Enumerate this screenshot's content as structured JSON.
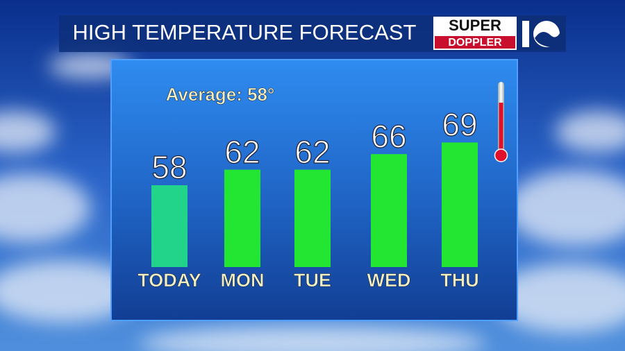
{
  "chart_data": {
    "type": "bar",
    "title": "HIGH TEMPERATURE FORECAST",
    "logo": {
      "top": "SUPER",
      "bottom": "DOPPLER"
    },
    "annotation": "Average: 58°",
    "categories": [
      "TODAY",
      "MON",
      "TUE",
      "WED",
      "THU"
    ],
    "values": [
      58,
      62,
      62,
      66,
      69
    ],
    "colors": [
      "#22d48a",
      "#22e632",
      "#22e632",
      "#22e632",
      "#22e632"
    ]
  }
}
